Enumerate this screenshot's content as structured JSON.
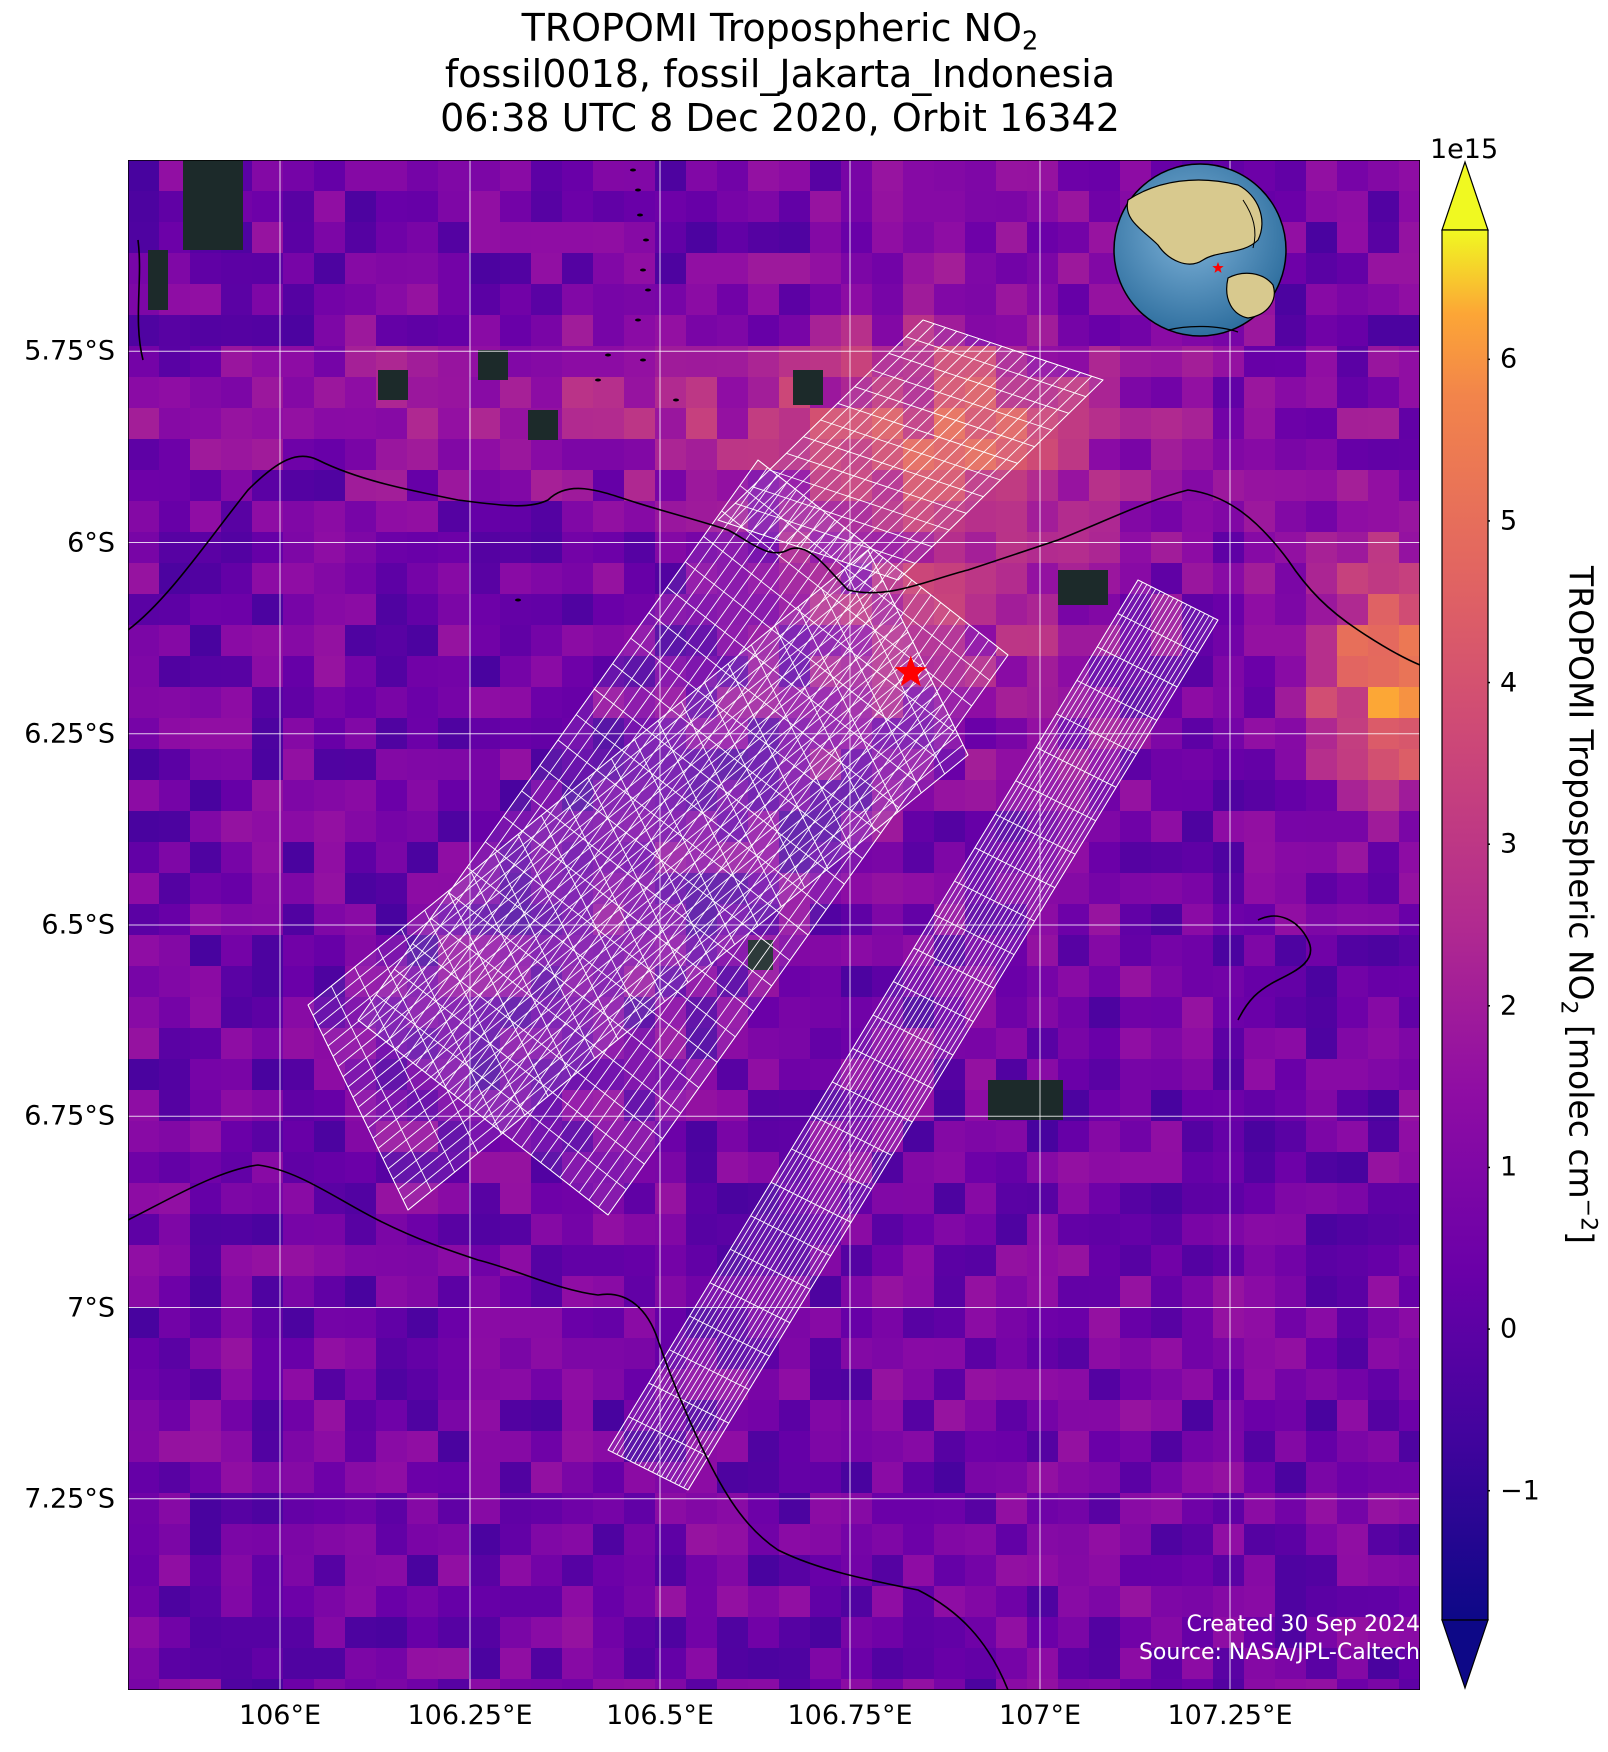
{
  "title": {
    "line1": "TROPOMI Tropospheric NO",
    "line1_sub": "2",
    "line2": "fossil0018, fossil_Jakarta_Indonesia",
    "line3": "06:38 UTC 8 Dec 2020, Orbit 16342"
  },
  "map": {
    "lon_range": [
      105.8,
      107.5
    ],
    "lat_range": [
      -7.5,
      -5.5
    ],
    "lon_ticks": [
      "106°E",
      "106.25°E",
      "106.5°E",
      "106.75°E",
      "107°E",
      "107.25°E"
    ],
    "lon_tick_values": [
      106.0,
      106.25,
      106.5,
      106.75,
      107.0,
      107.25
    ],
    "lat_ticks": [
      "5.75°S",
      "6°S",
      "6.25°S",
      "6.5°S",
      "6.75°S",
      "7°S",
      "7.25°S"
    ],
    "lat_tick_values": [
      -5.75,
      -6.0,
      -6.25,
      -6.5,
      -6.75,
      -7.0,
      -7.25
    ],
    "gridlines": true,
    "target": {
      "name": "fossil_Jakarta_Indonesia",
      "lon": 106.83,
      "lat": -6.17,
      "marker": "red-star"
    },
    "inset": "globe-locator"
  },
  "colorbar": {
    "label": "TROPOMI Tropospheric NO",
    "label_sub": "2",
    "label_unit": " [molec cm",
    "label_sup": "−2",
    "label_end": "]",
    "scale": "1e15",
    "range": [
      -1.8,
      6.8
    ],
    "ticks": [
      "−1",
      "0",
      "1",
      "2",
      "3",
      "4",
      "5",
      "6"
    ],
    "tick_values": [
      -1,
      0,
      1,
      2,
      3,
      4,
      5,
      6
    ],
    "colormap": "plasma",
    "extend": "both"
  },
  "credits": {
    "created": "Created 30 Sep 2024",
    "source": "Source: NASA/JPL-Caltech"
  },
  "colors": {
    "grid": "#ffffff",
    "coast": "#000000",
    "target": "#ff0000",
    "footprints": "#ffffff"
  }
}
